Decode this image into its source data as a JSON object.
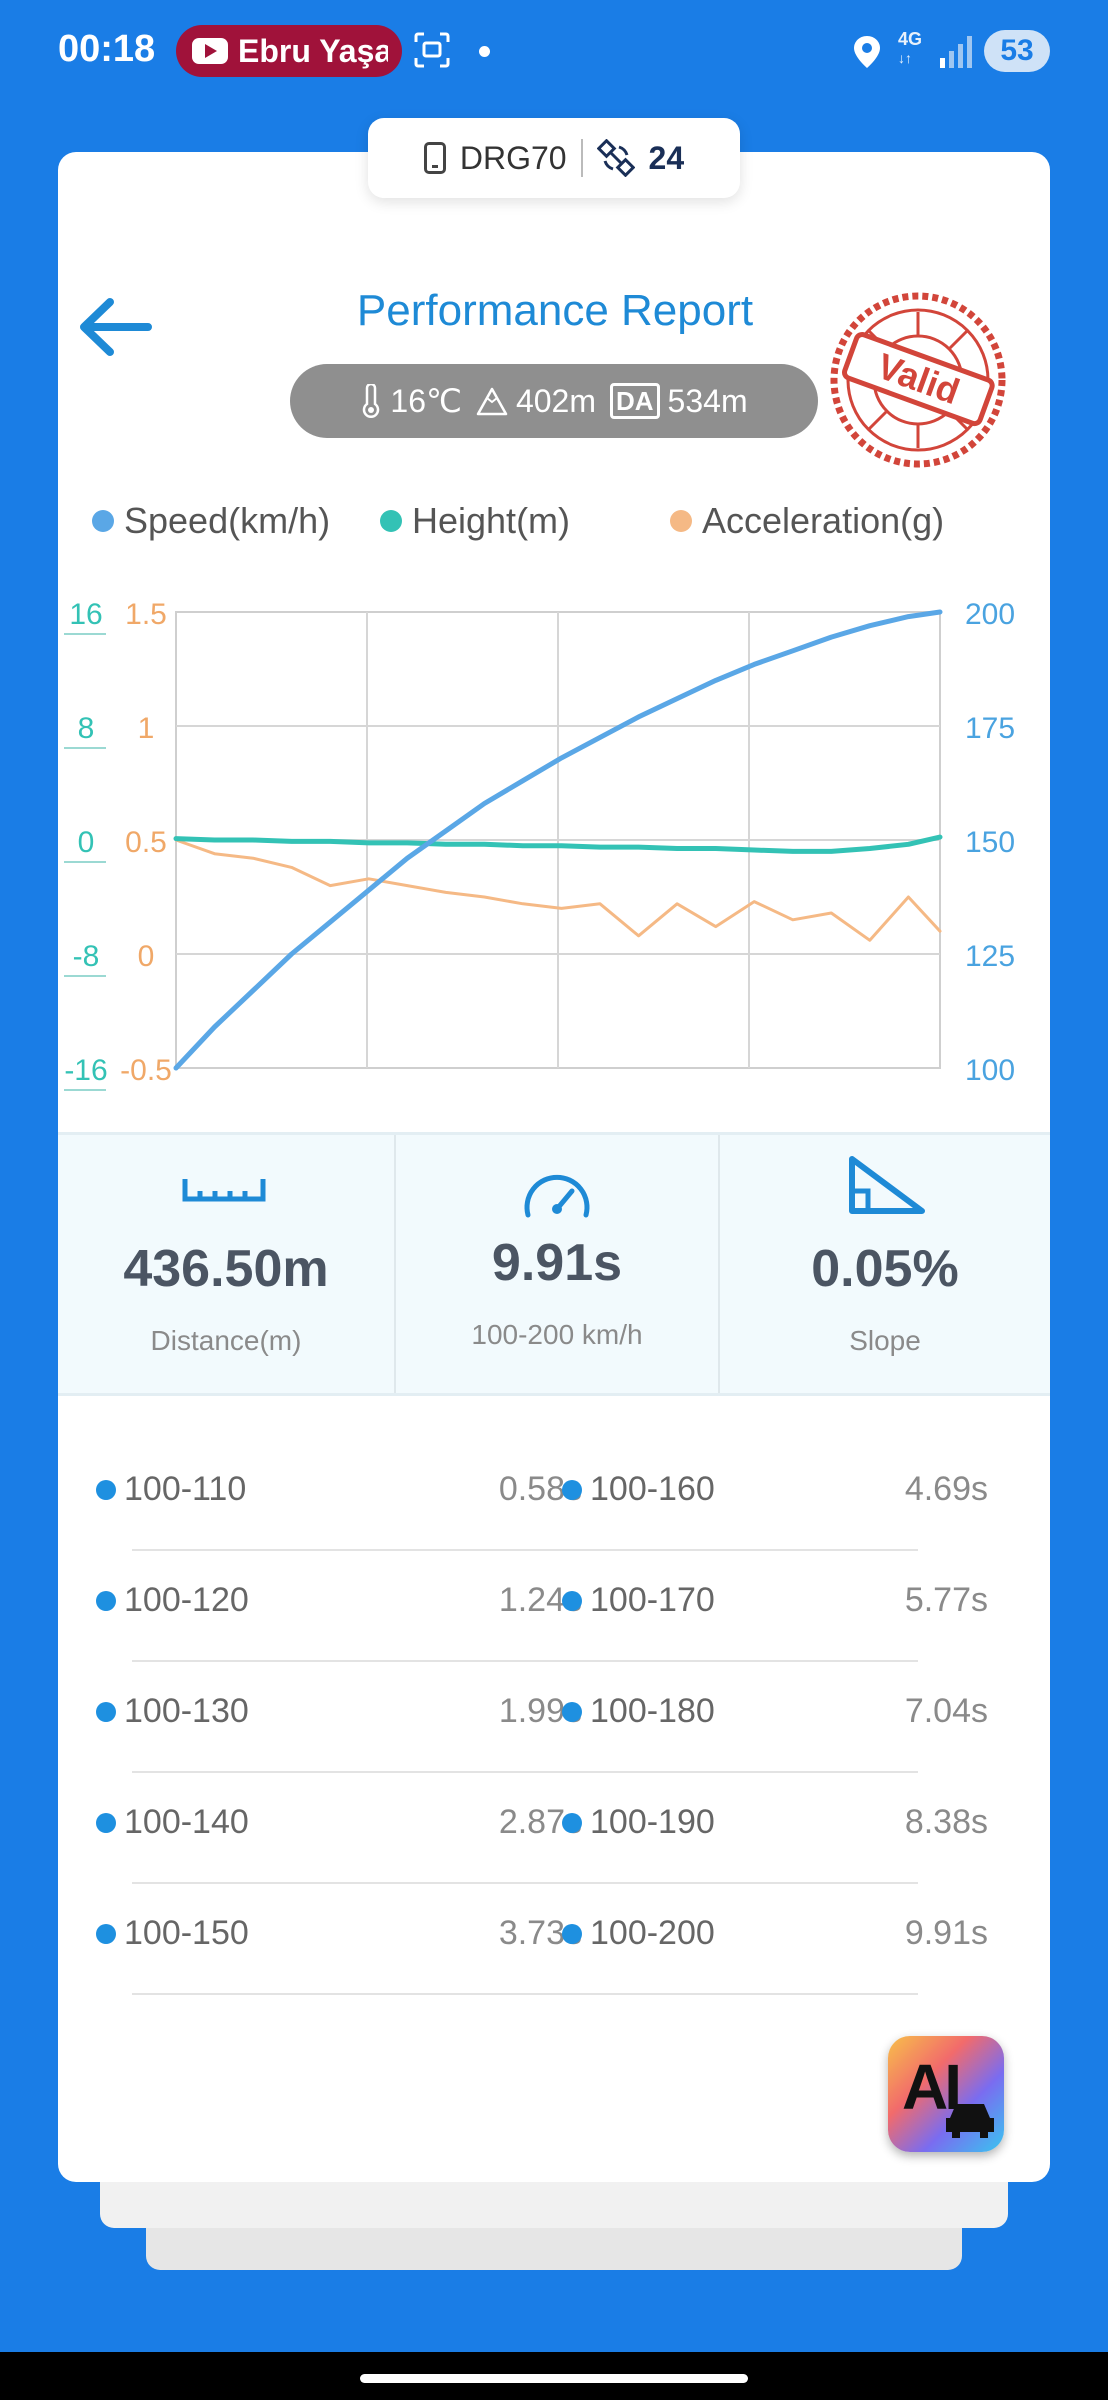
{
  "status_bar": {
    "time": "00:18",
    "media_pill_text": "Ebru Yaşa",
    "network": "4G",
    "battery": "53"
  },
  "device": {
    "name": "DRG70",
    "satellites": "24"
  },
  "header": {
    "title": "Performance Report",
    "stamp_text": "Valid",
    "conditions": {
      "temperature": "16℃",
      "altitude": "402m",
      "da_label": "DA",
      "density_altitude": "534m"
    }
  },
  "legend": {
    "speed": "Speed(km/h)",
    "height": "Height(m)",
    "acceleration": "Acceleration(g)"
  },
  "colors": {
    "speed": "#5aa7e6",
    "height": "#33c2b5",
    "acceleration": "#f5b985",
    "accent": "#1e8ad6",
    "background": "#1a7de6"
  },
  "chart_data": {
    "type": "line",
    "x": [
      0,
      0.5,
      1,
      1.5,
      2,
      2.5,
      3,
      3.5,
      4,
      4.5,
      5,
      5.5,
      6,
      6.5,
      7,
      7.5,
      8,
      8.5,
      9,
      9.5,
      9.91
    ],
    "axes": {
      "left_outer": {
        "series": "Height(m)",
        "ticks": [
          "16",
          "8",
          "0",
          "-8",
          "-16"
        ],
        "range": [
          -16,
          16
        ]
      },
      "left_inner": {
        "series": "Acceleration(g)",
        "ticks": [
          "1.5",
          "1",
          "0.5",
          "0",
          "-0.5"
        ],
        "range": [
          -0.5,
          1.5
        ]
      },
      "right": {
        "series": "Speed(km/h)",
        "ticks": [
          "200",
          "175",
          "150",
          "125",
          "100"
        ],
        "range": [
          100,
          200
        ]
      }
    },
    "grid": true,
    "legend_position": "top",
    "series": [
      {
        "name": "Speed(km/h)",
        "axis": "right",
        "values": [
          100,
          109,
          117,
          125,
          132,
          139,
          146,
          152,
          158,
          163,
          168,
          172.5,
          177,
          181,
          185,
          188.5,
          191.5,
          194.5,
          197,
          199,
          200
        ]
      },
      {
        "name": "Height(m)",
        "axis": "left_outer",
        "values": [
          0.1,
          0,
          0,
          -0.1,
          -0.1,
          -0.2,
          -0.2,
          -0.3,
          -0.3,
          -0.4,
          -0.4,
          -0.5,
          -0.5,
          -0.6,
          -0.6,
          -0.7,
          -0.8,
          -0.8,
          -0.6,
          -0.3,
          0.2
        ]
      },
      {
        "name": "Acceleration(g)",
        "axis": "left_inner",
        "values": [
          0.5,
          0.44,
          0.42,
          0.38,
          0.3,
          0.33,
          0.3,
          0.27,
          0.25,
          0.22,
          0.2,
          0.22,
          0.08,
          0.22,
          0.12,
          0.23,
          0.15,
          0.18,
          0.06,
          0.25,
          0.1
        ]
      }
    ]
  },
  "stats": {
    "distance_value": "436.50m",
    "distance_label": "Distance(m)",
    "time_value": "9.91s",
    "time_label": "100-200 km/h",
    "slope_value": "0.05%",
    "slope_label": "Slope"
  },
  "splits": [
    {
      "left_range": "100-110",
      "left_time": "0.58s",
      "right_range": "100-160",
      "right_time": "4.69s"
    },
    {
      "left_range": "100-120",
      "left_time": "1.24s",
      "right_range": "100-170",
      "right_time": "5.77s"
    },
    {
      "left_range": "100-130",
      "left_time": "1.99s",
      "right_range": "100-180",
      "right_time": "7.04s"
    },
    {
      "left_range": "100-140",
      "left_time": "2.87s",
      "right_range": "100-190",
      "right_time": "8.38s"
    },
    {
      "left_range": "100-150",
      "left_time": "3.73s",
      "right_range": "100-200",
      "right_time": "9.91s"
    }
  ],
  "ai_button": {
    "label": "AI",
    "icon": "car-icon"
  }
}
